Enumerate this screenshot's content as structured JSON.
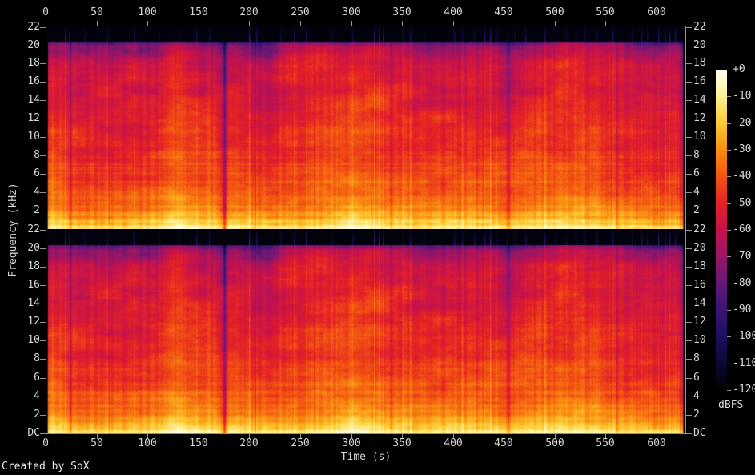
{
  "figure": {
    "footer": "Created by SoX",
    "bg_color": "#000000",
    "axis_color": "#949494",
    "text_color": "#d6d6d6"
  },
  "chart_data": {
    "type": "heatmap",
    "subtype": "stereo-audio-spectrogram (SoX)",
    "title": "",
    "xlabel": "Time (s)",
    "ylabel": "Frequency (kHz)",
    "x_ticks_s": [
      0,
      50,
      100,
      150,
      200,
      250,
      300,
      350,
      400,
      450,
      500,
      550,
      600
    ],
    "x_range_s": [
      0,
      629
    ],
    "duration_s": 625.5,
    "y_range_khz": [
      0,
      22.05
    ],
    "y_tick_step_khz": 2,
    "panels": [
      {
        "y_tick_labels": [
          "22",
          "20",
          "18",
          "16",
          "14",
          "12",
          "10",
          "8",
          "6",
          "4",
          "2"
        ]
      },
      {
        "y_tick_labels": [
          "22",
          "20",
          "18",
          "16",
          "14",
          "12",
          "10",
          "8",
          "6",
          "4",
          "2",
          "DC"
        ]
      }
    ],
    "colorbar": {
      "label": "dBFS",
      "tick_labels": [
        "+0",
        "-10",
        "-20",
        "-30",
        "-40",
        "-50",
        "-60",
        "-70",
        "-80",
        "-90",
        "-100",
        "-110",
        "-120"
      ],
      "range_db": [
        -120,
        0
      ],
      "palette_stops": [
        [
          0.0,
          "#000000"
        ],
        [
          0.083,
          "#0a0935"
        ],
        [
          0.167,
          "#1e105f"
        ],
        [
          0.25,
          "#3a1675"
        ],
        [
          0.333,
          "#651876"
        ],
        [
          0.417,
          "#981666"
        ],
        [
          0.5,
          "#c5124d"
        ],
        [
          0.583,
          "#e42126"
        ],
        [
          0.667,
          "#f35512"
        ],
        [
          0.75,
          "#fa8d12"
        ],
        [
          0.833,
          "#fdca30"
        ],
        [
          0.917,
          "#fff091"
        ],
        [
          1.0,
          "#fffff3"
        ]
      ]
    },
    "signal": {
      "lowpass_cutoff_khz": 20.38,
      "base_curve_db": [
        [
          0,
          -13
        ],
        [
          0.25,
          -14
        ],
        [
          0.7,
          -20
        ],
        [
          1.5,
          -27
        ],
        [
          3,
          -35
        ],
        [
          5,
          -41
        ],
        [
          8,
          -46
        ],
        [
          12,
          -50
        ],
        [
          16,
          -55
        ],
        [
          18.5,
          -60
        ],
        [
          19.8,
          -68
        ],
        [
          20.25,
          -78
        ],
        [
          20.45,
          -104
        ],
        [
          20.6,
          -119
        ],
        [
          22.05,
          -120
        ]
      ],
      "gap_format": [
        "time_s",
        "width_s",
        "depth_db"
      ],
      "silence_gaps": [
        [
          23,
          1.6,
          16
        ],
        [
          61,
          1.0,
          9
        ],
        [
          174,
          5.5,
          17
        ],
        [
          174.6,
          1.4,
          14
        ],
        [
          205,
          1.0,
          9
        ],
        [
          263,
          1.2,
          8
        ],
        [
          338,
          1.2,
          9
        ],
        [
          452.8,
          2.4,
          18
        ],
        [
          560,
          1.0,
          8
        ],
        [
          622.8,
          1.8,
          12
        ]
      ],
      "spike_format": [
        "time_s",
        "strength_db_above_floor"
      ],
      "transient_spikes": [
        [
          18.2,
          34
        ],
        [
          21.9,
          30
        ],
        [
          37,
          16
        ],
        [
          60,
          18
        ],
        [
          86,
          22
        ],
        [
          110,
          20
        ],
        [
          130,
          18
        ],
        [
          147,
          26
        ],
        [
          160,
          20
        ],
        [
          199,
          38
        ],
        [
          206,
          28
        ],
        [
          230,
          18
        ],
        [
          243,
          24
        ],
        [
          255,
          30
        ],
        [
          280,
          16
        ],
        [
          300,
          20
        ],
        [
          322,
          40
        ],
        [
          326,
          36
        ],
        [
          330,
          30
        ],
        [
          350,
          18
        ],
        [
          357,
          26
        ],
        [
          370,
          18
        ],
        [
          400,
          24
        ],
        [
          408,
          22
        ],
        [
          420,
          20
        ],
        [
          430,
          30
        ],
        [
          436,
          34
        ],
        [
          441,
          28
        ],
        [
          452,
          26
        ],
        [
          460,
          18
        ],
        [
          470,
          24
        ],
        [
          489,
          28
        ],
        [
          500,
          18
        ],
        [
          510,
          16
        ],
        [
          520,
          22
        ],
        [
          528,
          30
        ],
        [
          540,
          20
        ],
        [
          556,
          26
        ],
        [
          575,
          18
        ],
        [
          584,
          24
        ],
        [
          590,
          18
        ],
        [
          601,
          32
        ],
        [
          607,
          36
        ],
        [
          612,
          30
        ],
        [
          617,
          26
        ]
      ],
      "seed": 20480
    }
  }
}
